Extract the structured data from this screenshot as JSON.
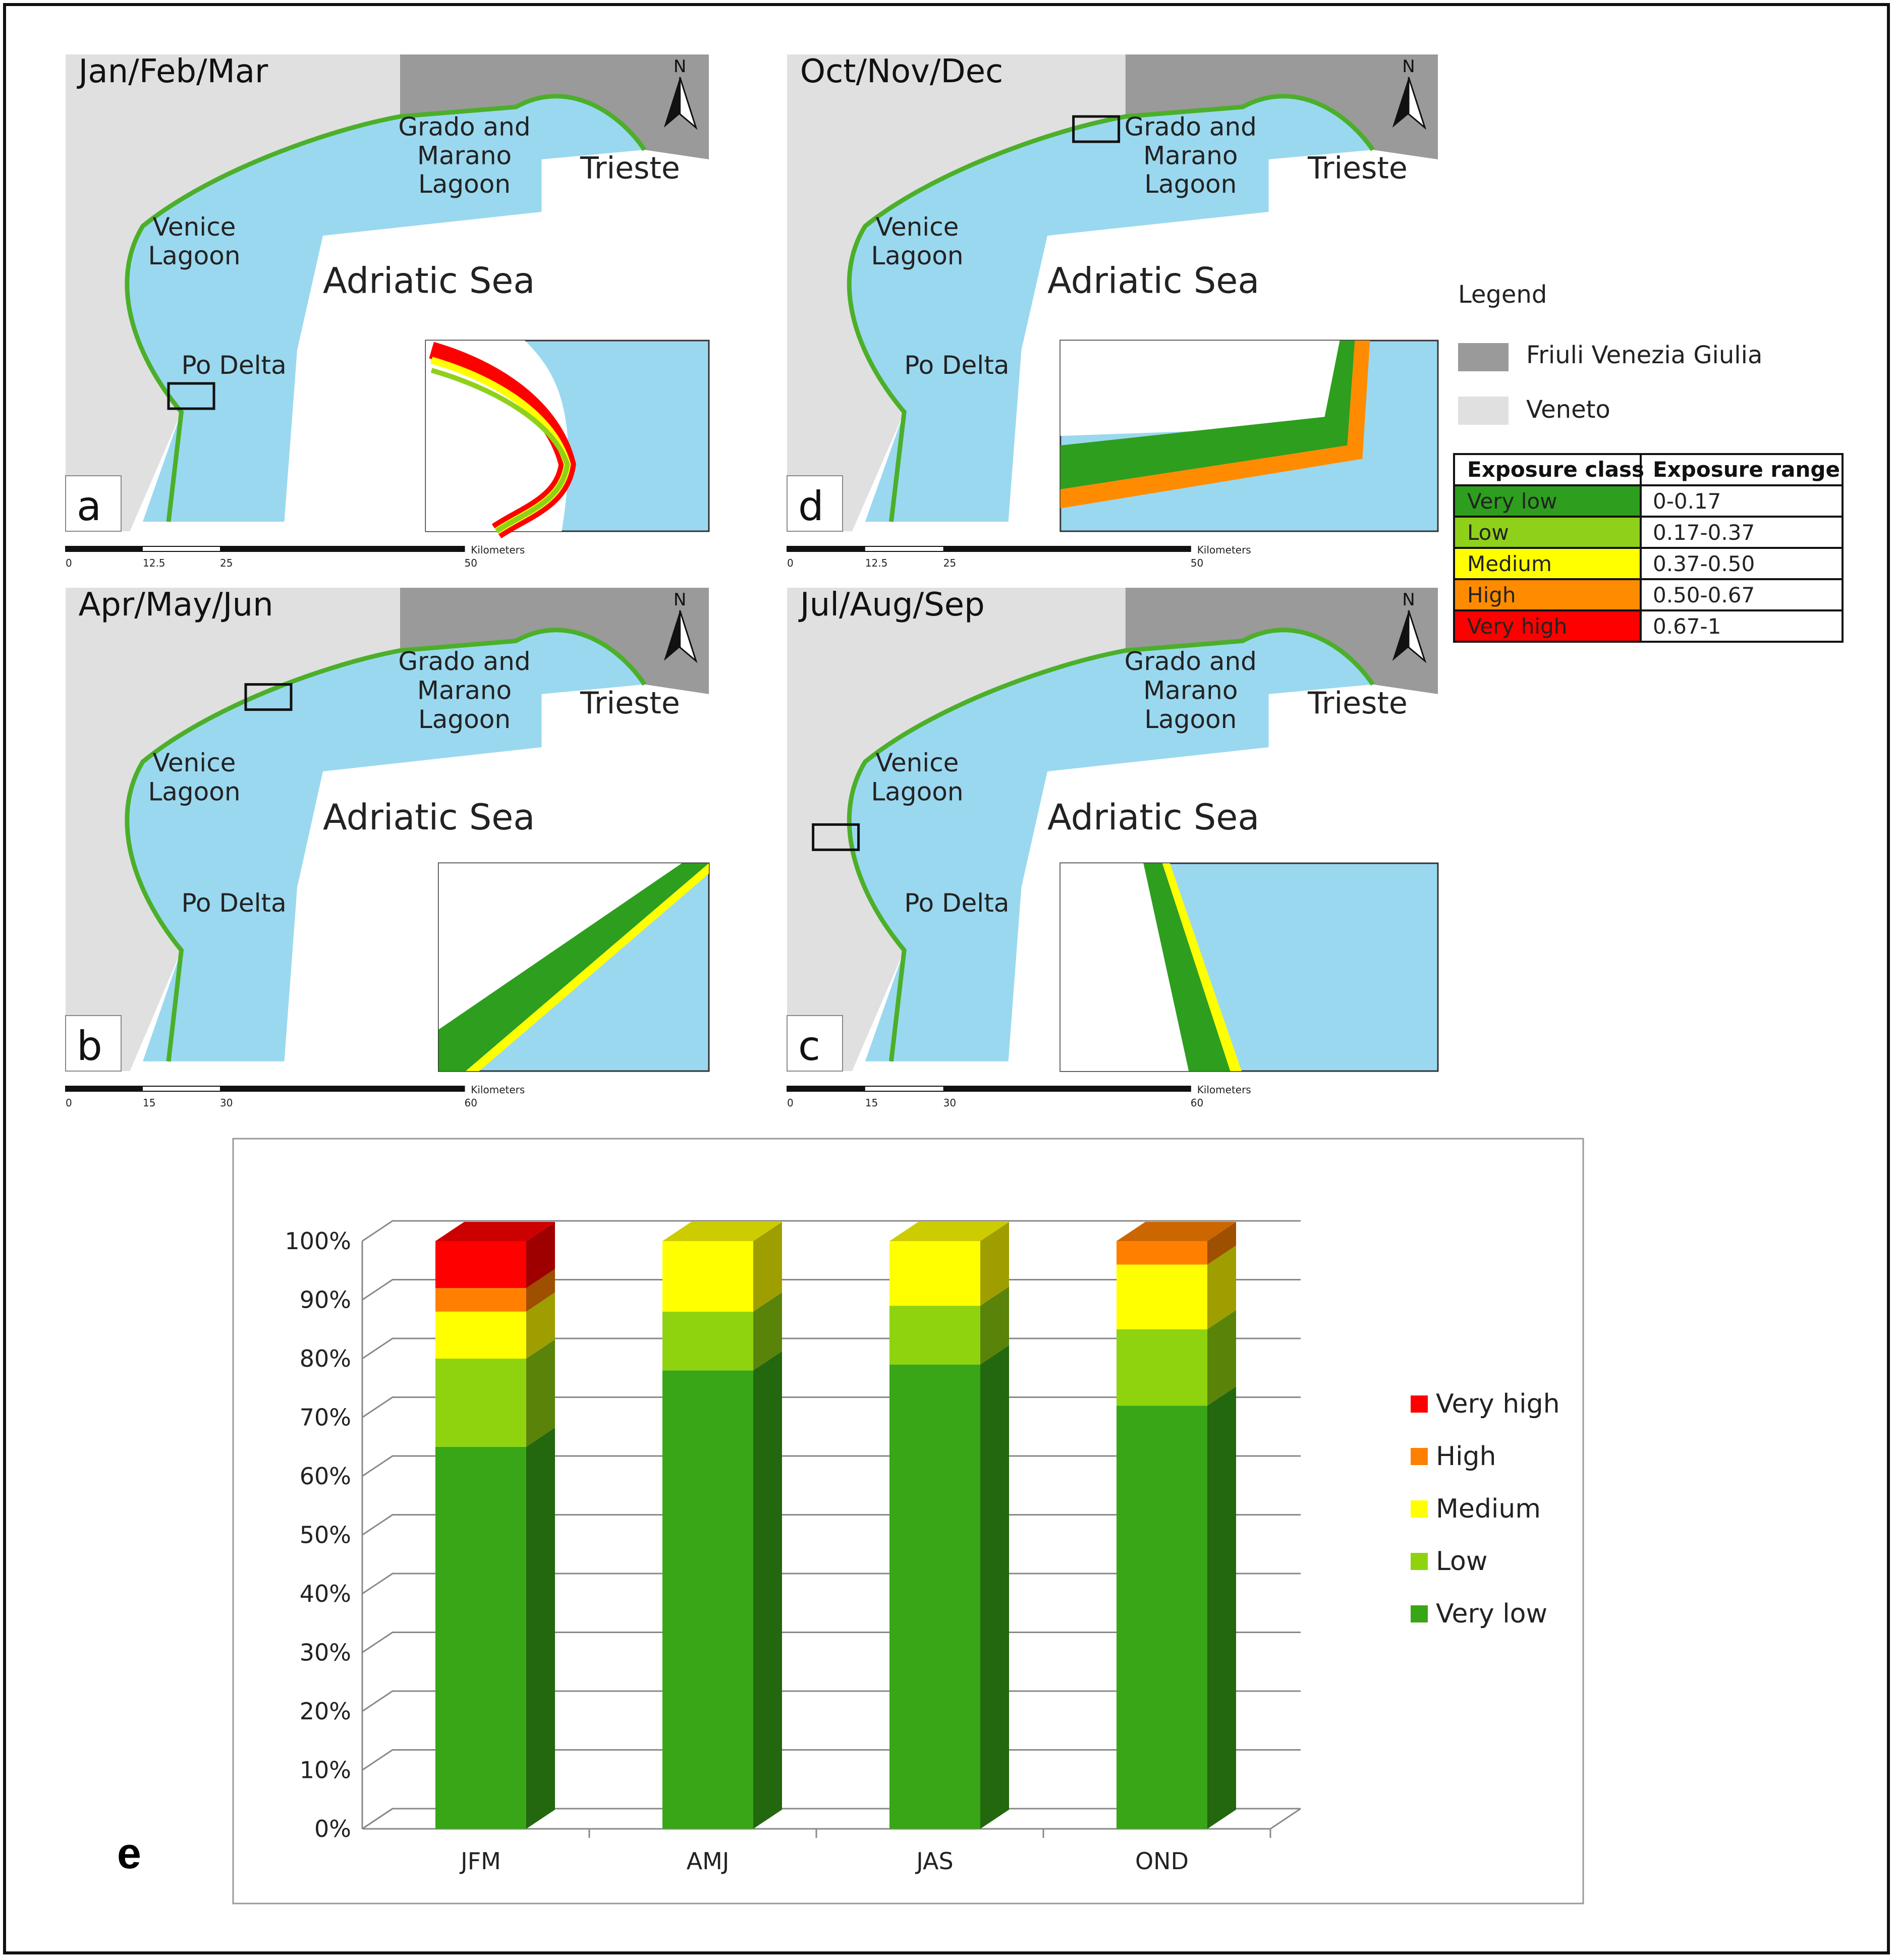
{
  "panels": [
    {
      "id": "a",
      "letter": "a",
      "season": "Jan/Feb/Mar",
      "lagoon1": "Venice",
      "lagoon2": "Lagoon",
      "grado1": "Grado and",
      "grado2": "Marano",
      "grado3": "Lagoon",
      "trieste": "Trieste",
      "sea": "Adriatic Sea",
      "po": "Po Delta",
      "north": "N",
      "scale": {
        "unit": "Kilometers",
        "ticks": [
          "0",
          "12.5",
          "25",
          "50"
        ]
      }
    },
    {
      "id": "d",
      "letter": "d",
      "season": "Oct/Nov/Dec",
      "lagoon1": "Venice",
      "lagoon2": "Lagoon",
      "grado1": "Grado and",
      "grado2": "Marano",
      "grado3": "Lagoon",
      "trieste": "Trieste",
      "sea": "Adriatic Sea",
      "po": "Po Delta",
      "north": "N",
      "scale": {
        "unit": "Kilometers",
        "ticks": [
          "0",
          "12.5",
          "25",
          "50"
        ]
      }
    },
    {
      "id": "b",
      "letter": "b",
      "season": "Apr/May/Jun",
      "lagoon1": "Venice",
      "lagoon2": "Lagoon",
      "grado1": "Grado and",
      "grado2": "Marano",
      "grado3": "Lagoon",
      "trieste": "Trieste",
      "sea": "Adriatic Sea",
      "po": "Po Delta",
      "north": "N",
      "scale": {
        "unit": "Kilometers",
        "ticks": [
          "0",
          "15",
          "30",
          "60"
        ]
      }
    },
    {
      "id": "c",
      "letter": "c",
      "season": "Jul/Aug/Sep",
      "lagoon1": "Venice",
      "lagoon2": "Lagoon",
      "grado1": "Grado and",
      "grado2": "Marano",
      "grado3": "Lagoon",
      "trieste": "Trieste",
      "sea": "Adriatic Sea",
      "po": "Po Delta",
      "north": "N",
      "scale": {
        "unit": "Kilometers",
        "ticks": [
          "0",
          "15",
          "30",
          "60"
        ]
      }
    }
  ],
  "legend": {
    "title": "Legend",
    "regions": [
      {
        "label": "Friuli Venezia Giulia",
        "color": "#9a9a9a"
      },
      {
        "label": "Veneto",
        "color": "#e0e0e0"
      }
    ],
    "table_header": [
      "Exposure class",
      "Exposure range"
    ],
    "classes": [
      {
        "label": "Very low",
        "range": "0-0.17",
        "color": "#2e9e1e"
      },
      {
        "label": "Low",
        "range": "0.17-0.37",
        "color": "#8fd11a"
      },
      {
        "label": "Medium",
        "range": "0.37-0.50",
        "color": "#ffff00"
      },
      {
        "label": "High",
        "range": "0.50-0.67",
        "color": "#ff8c00"
      },
      {
        "label": "Very high",
        "range": "0.67-1",
        "color": "#ff0000"
      }
    ]
  },
  "colors": {
    "sea": "#9ad8ef",
    "veneto": "#e0e0e0",
    "friuli": "#9a9a9a",
    "coast": "#4caf2a"
  },
  "chart_data": {
    "type": "bar",
    "stacked": true,
    "three_d": true,
    "panel_letter": "e",
    "categories": [
      "JFM",
      "AMJ",
      "JAS",
      "OND"
    ],
    "series": [
      {
        "name": "Very low",
        "color": "#38a617",
        "values": [
          65,
          78,
          79,
          72
        ]
      },
      {
        "name": "Low",
        "color": "#8fd30f",
        "values": [
          15,
          10,
          10,
          13
        ]
      },
      {
        "name": "Medium",
        "color": "#ffff00",
        "values": [
          8,
          12,
          11,
          11
        ]
      },
      {
        "name": "High",
        "color": "#ff8000",
        "values": [
          4,
          0,
          0,
          4
        ]
      },
      {
        "name": "Very high",
        "color": "#ff0000",
        "values": [
          8,
          0,
          0,
          0
        ]
      }
    ],
    "ylim": [
      0,
      100
    ],
    "yticks": [
      "0%",
      "10%",
      "20%",
      "30%",
      "40%",
      "50%",
      "60%",
      "70%",
      "80%",
      "90%",
      "100%"
    ],
    "legend_position": "right",
    "grid": true
  }
}
